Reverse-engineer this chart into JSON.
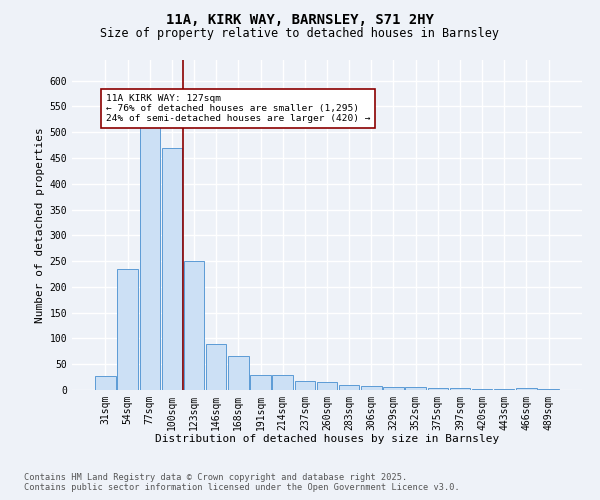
{
  "title_line1": "11A, KIRK WAY, BARNSLEY, S71 2HY",
  "title_line2": "Size of property relative to detached houses in Barnsley",
  "xlabel": "Distribution of detached houses by size in Barnsley",
  "ylabel": "Number of detached properties",
  "categories": [
    "31sqm",
    "54sqm",
    "77sqm",
    "100sqm",
    "123sqm",
    "146sqm",
    "168sqm",
    "191sqm",
    "214sqm",
    "237sqm",
    "260sqm",
    "283sqm",
    "306sqm",
    "329sqm",
    "352sqm",
    "375sqm",
    "397sqm",
    "420sqm",
    "443sqm",
    "466sqm",
    "489sqm"
  ],
  "values": [
    28,
    235,
    510,
    470,
    250,
    90,
    65,
    30,
    30,
    18,
    15,
    10,
    7,
    5,
    5,
    3,
    3,
    2,
    1,
    4,
    2
  ],
  "bar_color": "#cce0f5",
  "bar_edge_color": "#5b9bd5",
  "vline_color": "#8b0000",
  "annotation_text": "11A KIRK WAY: 127sqm\n← 76% of detached houses are smaller (1,295)\n24% of semi-detached houses are larger (420) →",
  "annotation_box_color": "white",
  "annotation_box_edge": "#8b0000",
  "ylim": [
    0,
    640
  ],
  "yticks": [
    0,
    50,
    100,
    150,
    200,
    250,
    300,
    350,
    400,
    450,
    500,
    550,
    600
  ],
  "footnote": "Contains HM Land Registry data © Crown copyright and database right 2025.\nContains public sector information licensed under the Open Government Licence v3.0.",
  "bg_color": "#eef2f8",
  "grid_color": "white",
  "title_fontsize": 10,
  "subtitle_fontsize": 8.5,
  "label_fontsize": 8,
  "tick_fontsize": 7,
  "annot_fontsize": 6.8,
  "footnote_fontsize": 6.2
}
